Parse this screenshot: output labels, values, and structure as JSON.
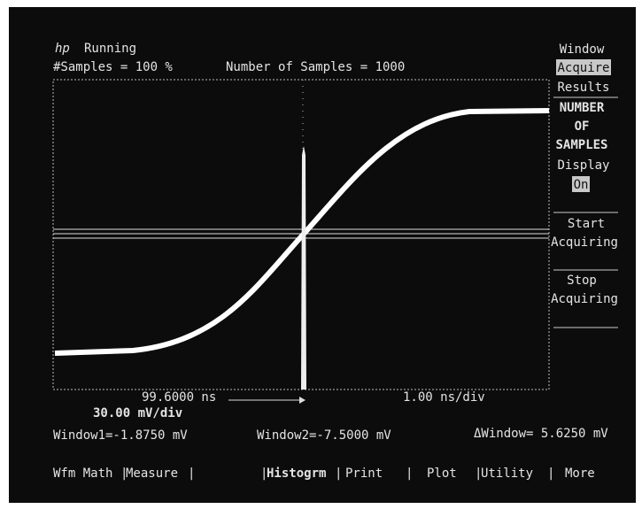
{
  "header": {
    "brand": "hp",
    "status": "Running",
    "samples_pct": "#Samples = 100 %",
    "num_samples": "Number of Samples = 1000"
  },
  "side_menu": [
    "Window",
    "Acquire",
    "Results",
    "NUMBER",
    "OF",
    "SAMPLES",
    "Display",
    "On",
    "Start",
    "Acquiring",
    "Stop",
    "Acquiring"
  ],
  "readouts": {
    "time_ref": "99.6000 ns",
    "time_scale": "1.00 ns/div",
    "volt_scale": "30.00 mV/div",
    "window1": "Window1=-1.8750 mV",
    "window2": "Window2=-7.5000 mV",
    "delta": "ΔWindow= 5.6250 mV"
  },
  "softkeys": [
    "Wfm Math",
    "Measure",
    "Histogrm",
    "Print",
    "Plot",
    "Utility",
    "More"
  ]
}
